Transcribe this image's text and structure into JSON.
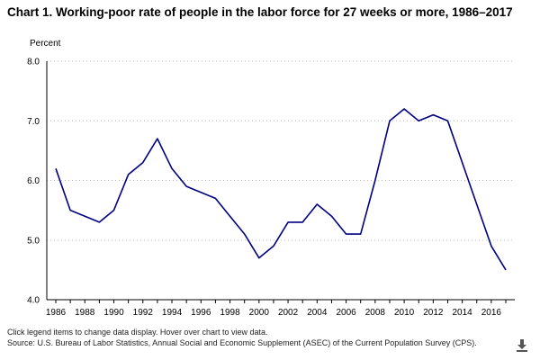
{
  "chart_data": {
    "type": "line",
    "title": "Chart 1. Working-poor rate of people in the labor force for 27 weeks or more, 1986–2017",
    "ylabel": "Percent",
    "xlabel": "",
    "ylim": [
      4.0,
      8.0
    ],
    "xlim": [
      1986,
      2017
    ],
    "y_ticks": [
      "4.0",
      "5.0",
      "6.0",
      "7.0",
      "8.0"
    ],
    "x_ticks": [
      "1986",
      "1988",
      "1990",
      "1992",
      "1994",
      "1996",
      "1998",
      "2000",
      "2002",
      "2004",
      "2006",
      "2008",
      "2010",
      "2012",
      "2014",
      "2016"
    ],
    "grid": "horizontal dotted",
    "line_color": "#000080",
    "series": [
      {
        "x": [
          1986,
          1987,
          1988,
          1989,
          1990,
          1991,
          1992,
          1993,
          1994,
          1995,
          1996,
          1997,
          1998,
          1999,
          2000,
          2001,
          2002,
          2003,
          2004,
          2005,
          2006,
          2007,
          2008,
          2009,
          2010,
          2011,
          2012,
          2013,
          2014,
          2015,
          2016,
          2017
        ],
        "values": [
          6.2,
          5.5,
          5.4,
          5.3,
          5.5,
          6.1,
          6.3,
          6.7,
          6.2,
          5.9,
          5.8,
          5.7,
          5.4,
          5.1,
          4.7,
          4.9,
          5.3,
          5.3,
          5.6,
          5.4,
          5.1,
          5.1,
          6.0,
          7.0,
          7.2,
          7.0,
          7.1,
          7.0,
          6.3,
          5.6,
          4.9,
          4.5
        ]
      }
    ]
  },
  "footnotes": {
    "line1": "Click legend items to change data display. Hover over chart to view data.",
    "line2": "Source: U.S. Bureau of Labor Statistics, Annual Social and Economic Supplement (ASEC) of the Current Population Survey (CPS)."
  },
  "icons": {
    "download": "download-icon"
  }
}
